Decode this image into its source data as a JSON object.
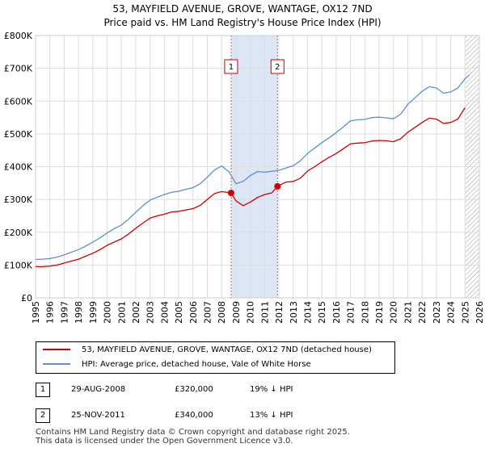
{
  "header": {
    "title": "53, MAYFIELD AVENUE, GROVE, WANTAGE, OX12 7ND",
    "subtitle": "Price paid vs. HM Land Registry's House Price Index (HPI)"
  },
  "chart_data": {
    "type": "line",
    "title": "53, MAYFIELD AVENUE, GROVE, WANTAGE, OX12 7ND",
    "subtitle": "Price paid vs. HM Land Registry's House Price Index (HPI)",
    "xlabel": "",
    "ylabel": "",
    "xlim": [
      1995,
      2026
    ],
    "ylim": [
      0,
      800000
    ],
    "x_ticks": [
      "1995",
      "1996",
      "1997",
      "1998",
      "1999",
      "2000",
      "2001",
      "2002",
      "2003",
      "2004",
      "2005",
      "2006",
      "2007",
      "2008",
      "2009",
      "2010",
      "2011",
      "2012",
      "2013",
      "2014",
      "2015",
      "2016",
      "2017",
      "2018",
      "2019",
      "2020",
      "2021",
      "2022",
      "2023",
      "2024",
      "2025",
      "2026"
    ],
    "y_ticks": [
      {
        "value": 0,
        "label": "£0"
      },
      {
        "value": 100000,
        "label": "£100K"
      },
      {
        "value": 200000,
        "label": "£200K"
      },
      {
        "value": 300000,
        "label": "£300K"
      },
      {
        "value": 400000,
        "label": "£400K"
      },
      {
        "value": 500000,
        "label": "£500K"
      },
      {
        "value": 600000,
        "label": "£600K"
      },
      {
        "value": 700000,
        "label": "£700K"
      },
      {
        "value": 800000,
        "label": "£800K"
      }
    ],
    "grid": true,
    "shaded_region": {
      "x_start": 2008.66,
      "x_end": 2011.9,
      "color": "#dce6f5"
    },
    "hatched_region": {
      "x_start": 2025.0,
      "x_end": 2026
    },
    "series": [
      {
        "name": "53, MAYFIELD AVENUE, GROVE, WANTAGE, OX12 7ND (detached house)",
        "color": "#cc0000",
        "x": [
          1995.0,
          1995.5,
          1996.0,
          1996.5,
          1997.0,
          1997.5,
          1998.0,
          1998.5,
          1999.0,
          1999.5,
          2000.0,
          2000.5,
          2001.0,
          2001.5,
          2002.0,
          2002.5,
          2003.0,
          2003.5,
          2004.0,
          2004.5,
          2005.0,
          2005.5,
          2006.0,
          2006.5,
          2007.0,
          2007.5,
          2008.0,
          2008.66,
          2009.0,
          2009.5,
          2010.0,
          2010.5,
          2011.0,
          2011.5,
          2011.9,
          2012.5,
          2013.0,
          2013.5,
          2014.0,
          2014.5,
          2015.0,
          2015.5,
          2016.0,
          2016.5,
          2017.0,
          2017.5,
          2018.0,
          2018.5,
          2019.0,
          2019.5,
          2020.0,
          2020.5,
          2021.0,
          2021.5,
          2022.0,
          2022.5,
          2023.0,
          2023.5,
          2024.0,
          2024.5,
          2025.0
        ],
        "values": [
          95000,
          95000,
          97000,
          100000,
          106000,
          112000,
          118000,
          127000,
          136000,
          147000,
          160000,
          170000,
          180000,
          195000,
          212000,
          228000,
          243000,
          250000,
          255000,
          262000,
          264000,
          268000,
          272000,
          282000,
          300000,
          318000,
          324000,
          320000,
          296000,
          281000,
          292000,
          306000,
          315000,
          320000,
          340000,
          353000,
          355000,
          365000,
          387000,
          400000,
          415000,
          428000,
          440000,
          455000,
          470000,
          472000,
          473000,
          478000,
          480000,
          479000,
          476000,
          485000,
          505000,
          520000,
          535000,
          548000,
          545000,
          532000,
          535000,
          545000,
          580000
        ]
      },
      {
        "name": "HPI: Average price, detached house, Vale of White Horse",
        "color": "#5b8fd1",
        "x": [
          1995.0,
          1995.5,
          1996.0,
          1996.5,
          1997.0,
          1997.5,
          1998.0,
          1998.5,
          1999.0,
          1999.5,
          2000.0,
          2000.5,
          2001.0,
          2001.5,
          2002.0,
          2002.5,
          2003.0,
          2003.5,
          2004.0,
          2004.5,
          2005.0,
          2005.5,
          2006.0,
          2006.5,
          2007.0,
          2007.5,
          2008.0,
          2008.5,
          2009.0,
          2009.5,
          2010.0,
          2010.5,
          2011.0,
          2011.5,
          2012.0,
          2012.5,
          2013.0,
          2013.5,
          2014.0,
          2014.5,
          2015.0,
          2015.5,
          2016.0,
          2016.5,
          2017.0,
          2017.5,
          2018.0,
          2018.5,
          2019.0,
          2019.5,
          2020.0,
          2020.5,
          2021.0,
          2021.5,
          2022.0,
          2022.5,
          2023.0,
          2023.5,
          2024.0,
          2024.5,
          2025.0,
          2025.3
        ],
        "values": [
          117000,
          118000,
          120000,
          124000,
          131000,
          139000,
          147000,
          158000,
          170000,
          183000,
          198000,
          211000,
          222000,
          240000,
          261000,
          281000,
          298000,
          307000,
          315000,
          322000,
          325000,
          331000,
          336000,
          348000,
          368000,
          390000,
          402000,
          385000,
          348000,
          355000,
          373000,
          385000,
          383000,
          386000,
          389000,
          396000,
          403000,
          418000,
          440000,
          457000,
          473000,
          488000,
          504000,
          521000,
          540000,
          543000,
          544000,
          550000,
          551000,
          549000,
          546000,
          560000,
          590000,
          610000,
          630000,
          644000,
          640000,
          624000,
          628000,
          640000,
          668000,
          680000
        ]
      }
    ],
    "markers": [
      {
        "label": "1",
        "x": 2008.66,
        "y": 320000
      },
      {
        "label": "2",
        "x": 2011.9,
        "y": 340000
      }
    ]
  },
  "legend": {
    "property_label": "53, MAYFIELD AVENUE, GROVE, WANTAGE, OX12 7ND (detached house)",
    "hpi_label": "HPI: Average price, detached house, Vale of White Horse",
    "property_color": "#cc0000",
    "hpi_color": "#5b8fd1"
  },
  "sales": [
    {
      "badge": "1",
      "date": "29-AUG-2008",
      "price": "£320,000",
      "hpi_diff": "19% ↓ HPI"
    },
    {
      "badge": "2",
      "date": "25-NOV-2011",
      "price": "£340,000",
      "hpi_diff": "13% ↓ HPI"
    }
  ],
  "footer": {
    "line1": "Contains HM Land Registry data © Crown copyright and database right 2025.",
    "line2": "This data is licensed under the Open Government Licence v3.0."
  }
}
